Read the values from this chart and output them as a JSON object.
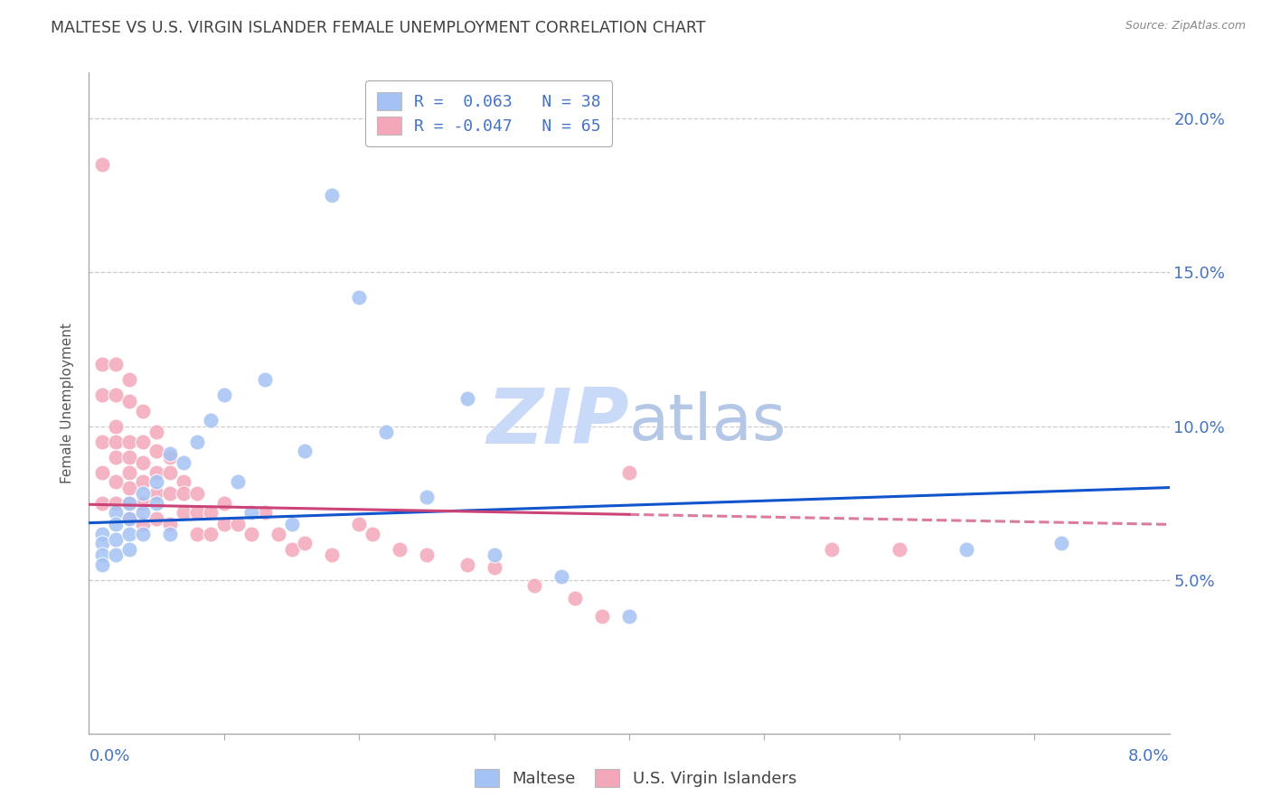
{
  "title": "MALTESE VS U.S. VIRGIN ISLANDER FEMALE UNEMPLOYMENT CORRELATION CHART",
  "source": "Source: ZipAtlas.com",
  "ylabel": "Female Unemployment",
  "y_ticks": [
    0.05,
    0.1,
    0.15,
    0.2
  ],
  "y_tick_labels": [
    "5.0%",
    "10.0%",
    "15.0%",
    "20.0%"
  ],
  "x_range": [
    0.0,
    0.08
  ],
  "y_range": [
    0.0,
    0.215
  ],
  "watermark_zip": "ZIP",
  "watermark_atlas": "atlas",
  "blue_color": "#a4c2f4",
  "pink_color": "#f4a7b9",
  "trend_blue_color": "#1155cc",
  "trend_pink_color": "#cc4477",
  "title_color": "#404040",
  "axis_label_color": "#4472c4",
  "source_color": "#888888",
  "watermark_zip_color": "#c9daf8",
  "watermark_atlas_color": "#b4c7e7",
  "grid_color": "#cccccc",
  "maltese_x": [
    0.001,
    0.001,
    0.001,
    0.001,
    0.002,
    0.002,
    0.002,
    0.002,
    0.003,
    0.003,
    0.003,
    0.003,
    0.004,
    0.004,
    0.004,
    0.005,
    0.005,
    0.006,
    0.006,
    0.007,
    0.008,
    0.009,
    0.01,
    0.011,
    0.012,
    0.013,
    0.015,
    0.016,
    0.018,
    0.02,
    0.022,
    0.025,
    0.028,
    0.03,
    0.035,
    0.04,
    0.065,
    0.072
  ],
  "maltese_y": [
    0.065,
    0.062,
    0.058,
    0.055,
    0.072,
    0.068,
    0.063,
    0.058,
    0.075,
    0.07,
    0.065,
    0.06,
    0.078,
    0.072,
    0.065,
    0.082,
    0.075,
    0.091,
    0.065,
    0.088,
    0.095,
    0.102,
    0.11,
    0.082,
    0.072,
    0.115,
    0.068,
    0.092,
    0.175,
    0.142,
    0.098,
    0.077,
    0.109,
    0.058,
    0.051,
    0.038,
    0.06,
    0.062
  ],
  "vi_x": [
    0.001,
    0.001,
    0.001,
    0.001,
    0.001,
    0.001,
    0.002,
    0.002,
    0.002,
    0.002,
    0.002,
    0.002,
    0.002,
    0.003,
    0.003,
    0.003,
    0.003,
    0.003,
    0.003,
    0.003,
    0.003,
    0.004,
    0.004,
    0.004,
    0.004,
    0.004,
    0.004,
    0.005,
    0.005,
    0.005,
    0.005,
    0.005,
    0.006,
    0.006,
    0.006,
    0.006,
    0.007,
    0.007,
    0.007,
    0.008,
    0.008,
    0.008,
    0.009,
    0.009,
    0.01,
    0.01,
    0.011,
    0.012,
    0.013,
    0.014,
    0.015,
    0.016,
    0.018,
    0.02,
    0.021,
    0.023,
    0.025,
    0.028,
    0.03,
    0.033,
    0.036,
    0.038,
    0.04,
    0.055,
    0.06
  ],
  "vi_y": [
    0.185,
    0.12,
    0.11,
    0.095,
    0.085,
    0.075,
    0.12,
    0.11,
    0.1,
    0.095,
    0.09,
    0.082,
    0.075,
    0.115,
    0.108,
    0.095,
    0.09,
    0.085,
    0.08,
    0.075,
    0.07,
    0.105,
    0.095,
    0.088,
    0.082,
    0.075,
    0.068,
    0.098,
    0.092,
    0.085,
    0.078,
    0.07,
    0.09,
    0.085,
    0.078,
    0.068,
    0.082,
    0.078,
    0.072,
    0.078,
    0.072,
    0.065,
    0.072,
    0.065,
    0.075,
    0.068,
    0.068,
    0.065,
    0.072,
    0.065,
    0.06,
    0.062,
    0.058,
    0.068,
    0.065,
    0.06,
    0.058,
    0.055,
    0.054,
    0.048,
    0.044,
    0.038,
    0.085,
    0.06,
    0.06
  ],
  "trend_blue_x0": 0.0,
  "trend_blue_y0": 0.0685,
  "trend_blue_x1": 0.08,
  "trend_blue_y1": 0.08,
  "trend_pink_x0": 0.0,
  "trend_pink_y0": 0.0745,
  "trend_pink_x1": 0.08,
  "trend_pink_y1": 0.068,
  "trend_pink_solid_end": 0.04,
  "legend_blue_label": "R =  0.063   N = 38",
  "legend_pink_label": "R = -0.047   N = 65",
  "bottom_legend_maltese": "Maltese",
  "bottom_legend_vi": "U.S. Virgin Islanders"
}
